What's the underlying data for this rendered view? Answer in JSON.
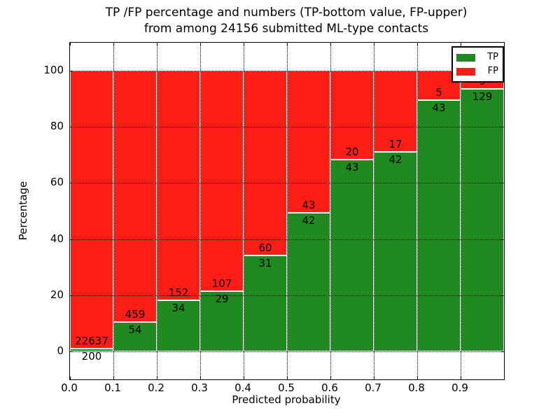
{
  "title": {
    "line1": "TP /FP percentage and numbers (TP-bottom value, FP-upper)",
    "line2": "from among 24156 submitted ML-type contacts"
  },
  "axes": {
    "xlabel": "Predicted probability",
    "ylabel": "Percentage",
    "x_tick_labels": [
      "0.0",
      "0.1",
      "0.2",
      "0.3",
      "0.4",
      "0.5",
      "0.6",
      "0.7",
      "0.8",
      "0.9"
    ],
    "y_tick_labels": [
      "0",
      "20",
      "40",
      "60",
      "80",
      "100"
    ],
    "y_tick_values": [
      0,
      20,
      40,
      60,
      80,
      100
    ]
  },
  "legend": {
    "items": [
      {
        "label": "TP",
        "color": "#208a20"
      },
      {
        "label": "FP",
        "color": "#fc1d17"
      }
    ]
  },
  "colors": {
    "tp": "#208a20",
    "fp": "#fc1d17",
    "grid": "#000000",
    "background": "#ffffff"
  },
  "chart_data": {
    "type": "bar",
    "stacked": true,
    "normalized": "each bar sums to 100%",
    "title": "TP /FP percentage and numbers (TP-bottom value, FP-upper) from among 24156 submitted ML-type contacts",
    "xlabel": "Predicted probability",
    "ylabel": "Percentage",
    "xlim": [
      0.0,
      1.0
    ],
    "ylim": [
      -10,
      110
    ],
    "grid": "dotted black, both axes",
    "legend_position": "upper right",
    "total_contacts": 24156,
    "categories": [
      "0.0-0.1",
      "0.1-0.2",
      "0.2-0.3",
      "0.3-0.4",
      "0.4-0.5",
      "0.5-0.6",
      "0.6-0.7",
      "0.7-0.8",
      "0.8-0.9",
      "0.9-1.0"
    ],
    "series": [
      {
        "name": "TP",
        "color": "#208a20",
        "counts": [
          200,
          54,
          34,
          29,
          31,
          42,
          43,
          42,
          43,
          129
        ]
      },
      {
        "name": "FP",
        "color": "#fc1d17",
        "counts": [
          22637,
          459,
          152,
          107,
          60,
          43,
          20,
          17,
          5,
          9
        ]
      }
    ],
    "tp_percent": [
      0.88,
      10.53,
      18.28,
      21.32,
      34.07,
      49.41,
      68.25,
      71.19,
      89.58,
      93.48
    ],
    "fp_percent": [
      99.12,
      89.47,
      81.72,
      78.68,
      65.93,
      50.59,
      31.75,
      28.81,
      10.42,
      6.52
    ],
    "bar_value_labels_note": "TP count printed just below green/red boundary, FP count just above it"
  }
}
